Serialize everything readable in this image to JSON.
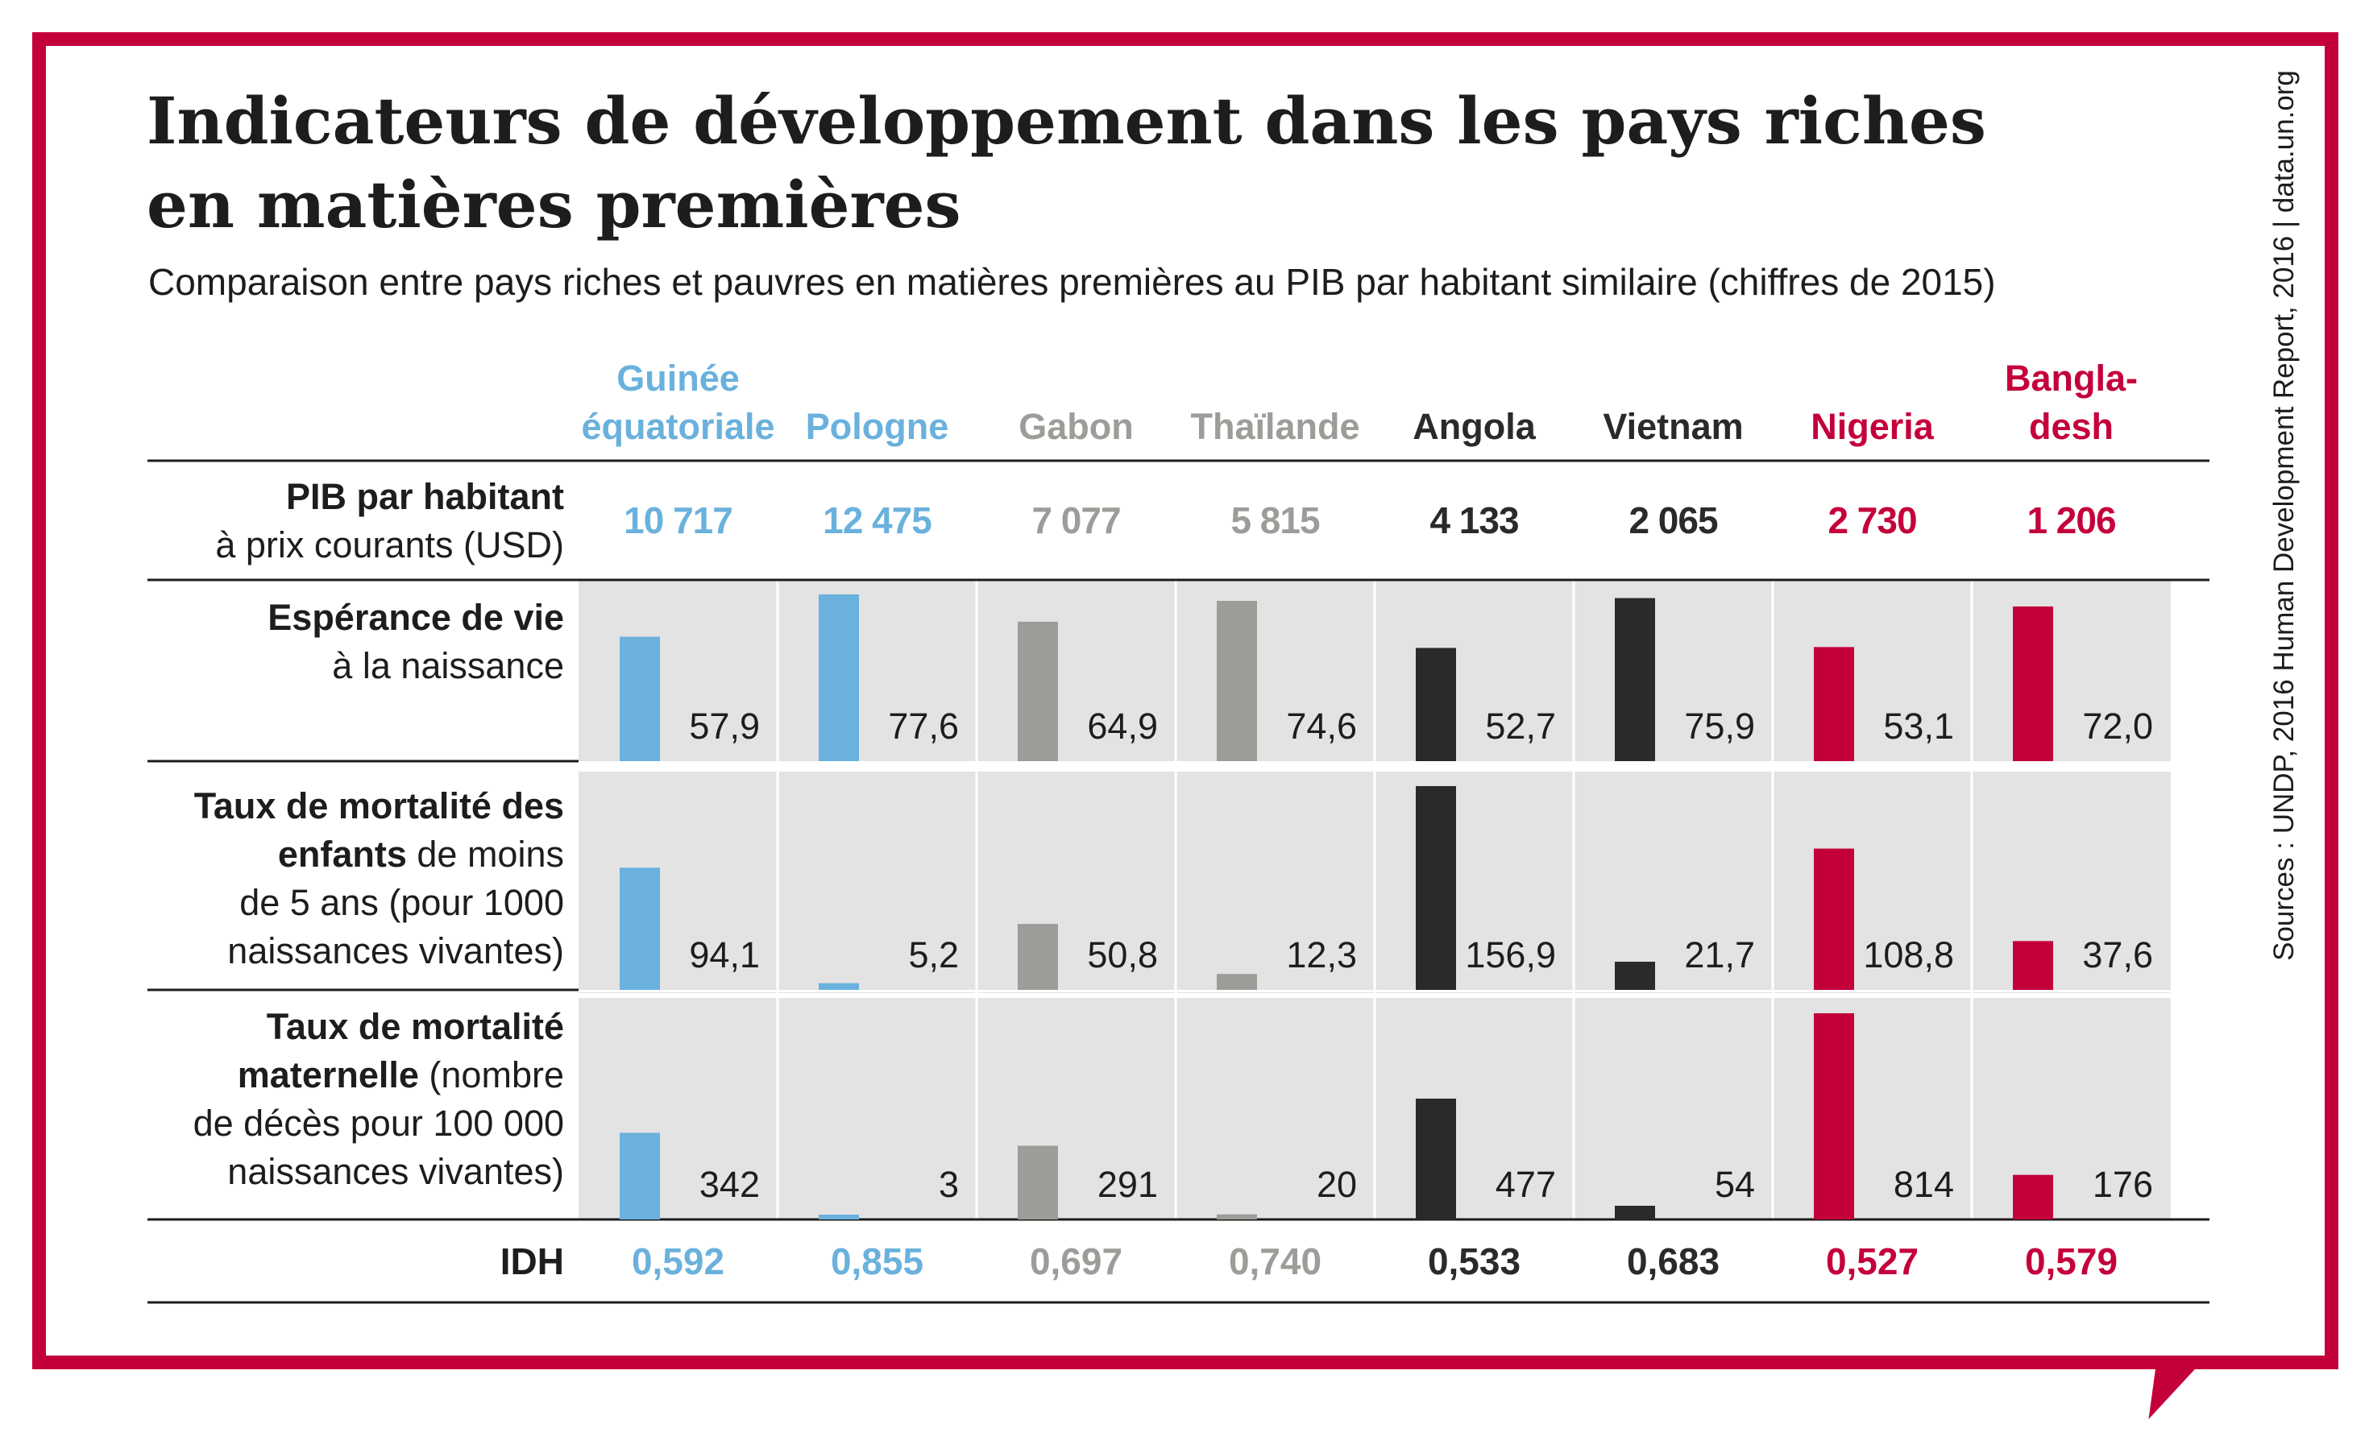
{
  "title_line1": "Indicateurs de développement dans les pays riches",
  "title_line2": "en matières premières",
  "subtitle": "Comparaison entre pays riches et pauvres en matières premières au PIB par habitant similaire (chiffres de 2015)",
  "source": "Sources : UNDP, 2016 Human Development Report, 2016 | data.un.org",
  "colors": {
    "blue": "#6ab1dd",
    "grey": "#9d9c98",
    "black": "#2a2a28",
    "red": "#c4003b",
    "panel": "#e3e3e3",
    "frame": "#c4003b"
  },
  "chart_data": {
    "type": "bar",
    "countries": [
      {
        "name_lines": [
          "Guinée",
          "équatoriale"
        ],
        "group": "blue"
      },
      {
        "name_lines": [
          "Pologne"
        ],
        "group": "blue"
      },
      {
        "name_lines": [
          "Gabon"
        ],
        "group": "grey"
      },
      {
        "name_lines": [
          "Thaïlande"
        ],
        "group": "grey"
      },
      {
        "name_lines": [
          "Angola"
        ],
        "group": "black"
      },
      {
        "name_lines": [
          "Vietnam"
        ],
        "group": "black"
      },
      {
        "name_lines": [
          "Nigeria"
        ],
        "group": "red"
      },
      {
        "name_lines": [
          "Bangla-",
          "desh"
        ],
        "group": "red"
      }
    ],
    "gdp": {
      "label_lines": [
        [
          {
            "text": "PIB par habitant",
            "bold": true
          }
        ],
        [
          {
            "text": "à prix courants (USD)",
            "bold": false
          }
        ]
      ],
      "values": [
        10717,
        12475,
        7077,
        5815,
        4133,
        2065,
        2730,
        1206
      ],
      "labels": [
        "10 717",
        "12 475",
        "7 077",
        "5 815",
        "4 133",
        "2 065",
        "2 730",
        "1 206"
      ]
    },
    "rows": [
      {
        "label_lines": [
          [
            {
              "text": "Espérance de vie",
              "bold": true
            }
          ],
          [
            {
              "text": "à la naissance",
              "bold": false
            }
          ]
        ],
        "values": [
          57.9,
          77.6,
          64.9,
          74.6,
          52.7,
          75.9,
          53.1,
          72.0
        ],
        "labels": [
          "57,9",
          "77,6",
          "64,9",
          "74,6",
          "52,7",
          "75,9",
          "53,1",
          "72,0"
        ]
      },
      {
        "label_lines": [
          [
            {
              "text": "Taux de mortalité des",
              "bold": true
            }
          ],
          [
            {
              "text": "enfants",
              "bold": true
            },
            {
              "text": " de moins",
              "bold": false
            }
          ],
          [
            {
              "text": "de 5 ans (pour 1000",
              "bold": false
            }
          ],
          [
            {
              "text": "naissances vivantes)",
              "bold": false
            }
          ]
        ],
        "values": [
          94.1,
          5.2,
          50.8,
          12.3,
          156.9,
          21.7,
          108.8,
          37.6
        ],
        "labels": [
          "94,1",
          "5,2",
          "50,8",
          "12,3",
          "156,9",
          "21,7",
          "108,8",
          "37,6"
        ]
      },
      {
        "label_lines": [
          [
            {
              "text": "Taux de mortalité",
              "bold": true
            }
          ],
          [
            {
              "text": "maternelle",
              "bold": true
            },
            {
              "text": " (nombre",
              "bold": false
            }
          ],
          [
            {
              "text": "de décès pour 100 000",
              "bold": false
            }
          ],
          [
            {
              "text": "naissances vivantes)",
              "bold": false
            }
          ]
        ],
        "values": [
          342,
          3,
          291,
          20,
          477,
          54,
          814,
          176
        ],
        "labels": [
          "342",
          "3",
          "291",
          "20",
          "477",
          "54",
          "814",
          "176"
        ]
      }
    ],
    "idh": {
      "label": "IDH",
      "values": [
        0.592,
        0.855,
        0.697,
        0.74,
        0.533,
        0.683,
        0.527,
        0.579
      ],
      "labels": [
        "0,592",
        "0,855",
        "0,697",
        "0,740",
        "0,533",
        "0,683",
        "0,527",
        "0,579"
      ]
    }
  }
}
